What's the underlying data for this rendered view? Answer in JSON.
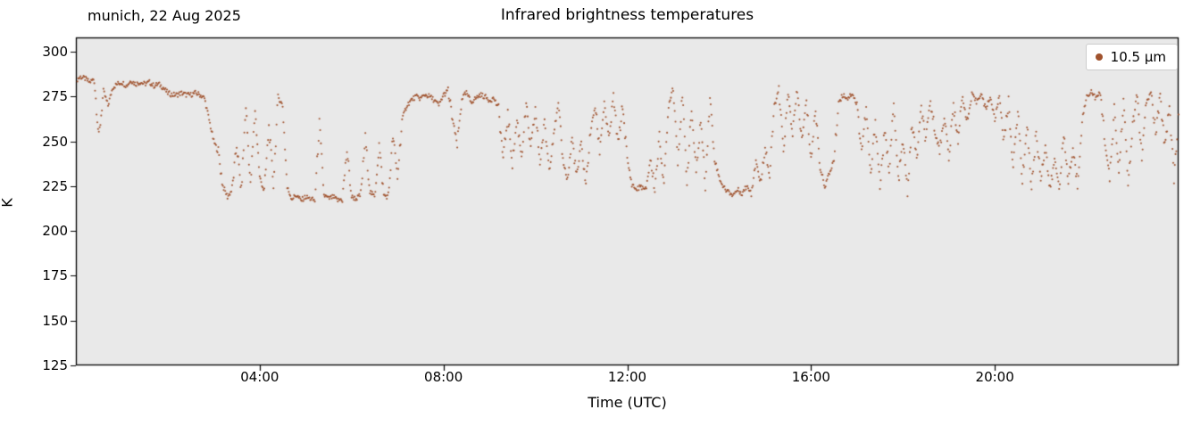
{
  "titles": {
    "left": "munich, 22 Aug 2025",
    "center": "Infrared brightness temperatures"
  },
  "axes": {
    "xlabel": "Time (UTC)",
    "ylabel": "K",
    "yticks": [
      "125",
      "150",
      "175",
      "200",
      "225",
      "250",
      "275",
      "300"
    ],
    "xticks": [
      {
        "hour": 4,
        "label": "04:00"
      },
      {
        "hour": 8,
        "label": "08:00"
      },
      {
        "hour": 12,
        "label": "12:00"
      },
      {
        "hour": 16,
        "label": "16:00"
      },
      {
        "hour": 20,
        "label": "20:00"
      }
    ]
  },
  "legend": {
    "label": "10.5 µm",
    "marker_color": "#a0522d"
  },
  "chart_data": {
    "type": "scatter",
    "title": "Infrared brightness temperatures",
    "subtitle_left": "munich, 22 Aug 2025",
    "xlabel": "Time (UTC)",
    "ylabel": "K",
    "xlim": [
      0,
      24
    ],
    "ylim": [
      125,
      308
    ],
    "ytick_values": [
      125,
      150,
      175,
      200,
      225,
      250,
      275,
      300
    ],
    "xtick_hours": [
      4,
      8,
      12,
      16,
      20
    ],
    "grid": false,
    "legend_position": "upper right",
    "plot_bg": "#e9e9e9",
    "series": [
      {
        "name": "10.5 µm",
        "color": "#a0522d",
        "marker": "dot",
        "t_start_hours": 0.0,
        "dt_hours": 0.1,
        "values_k": [
          284,
          286,
          285,
          283,
          285,
          252,
          278,
          270,
          280,
          282,
          283,
          281,
          284,
          282,
          283,
          282,
          283,
          281,
          282,
          280,
          277,
          276,
          276,
          277,
          276,
          276,
          277,
          276,
          274,
          262,
          250,
          244,
          225,
          219,
          223,
          248,
          222,
          270,
          225,
          268,
          230,
          222,
          258,
          226,
          275,
          270,
          224,
          218,
          220,
          217,
          219,
          218,
          217,
          260,
          220,
          218,
          219,
          217,
          218,
          245,
          219,
          218,
          220,
          252,
          222,
          219,
          248,
          220,
          219,
          253,
          230,
          262,
          270,
          273,
          275,
          274,
          276,
          275,
          273,
          270,
          276,
          278,
          262,
          248,
          274,
          277,
          272,
          274,
          276,
          275,
          273,
          274,
          268,
          240,
          265,
          238,
          262,
          242,
          270,
          245,
          268,
          238,
          260,
          235,
          255,
          270,
          240,
          228,
          252,
          230,
          248,
          226,
          255,
          270,
          245,
          272,
          250,
          275,
          248,
          270,
          240,
          226,
          223,
          225,
          222,
          240,
          224,
          252,
          226,
          270,
          281,
          240,
          275,
          228,
          268,
          232,
          262,
          226,
          275,
          240,
          230,
          224,
          222,
          220,
          223,
          221,
          225,
          222,
          240,
          226,
          248,
          230,
          270,
          278,
          245,
          276,
          255,
          278,
          250,
          272,
          240,
          268,
          235,
          225,
          232,
          240,
          272,
          276,
          274,
          277,
          270,
          245,
          268,
          230,
          262,
          225,
          255,
          235,
          270,
          228,
          250,
          222,
          260,
          240,
          268,
          250,
          272,
          255,
          245,
          265,
          240,
          270,
          252,
          275,
          260,
          276,
          272,
          277,
          268,
          275,
          262,
          276,
          250,
          272,
          235,
          268,
          228,
          260,
          224,
          255,
          230,
          248,
          222,
          240,
          225,
          252,
          228,
          245,
          226,
          262,
          275,
          278,
          274,
          277,
          250,
          228,
          268,
          232,
          274,
          226,
          258,
          276,
          240,
          272,
          277,
          255,
          274,
          248,
          270,
          230,
          265
        ]
      }
    ]
  }
}
